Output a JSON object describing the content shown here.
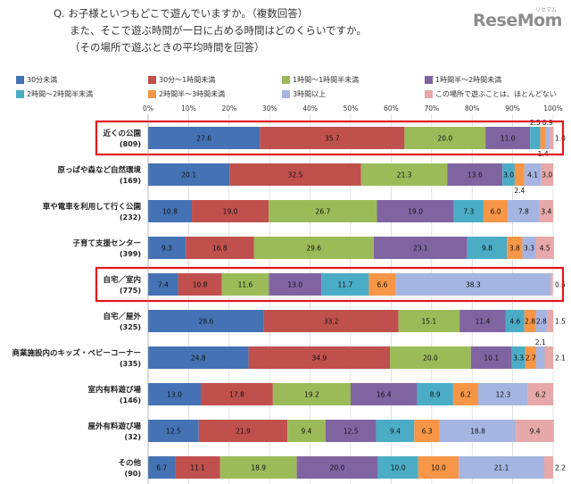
{
  "question": {
    "line1": "Q. お子様といつもどこで遊んでいますか。（複数回答）",
    "line2": "また、そこで遊ぶ時間が一日に占める時間はどのくらいですか。",
    "line3": "（その場所で遊ぶときの平均時間を回答）"
  },
  "logo": {
    "main": "ReseMom",
    "small": "リセマム"
  },
  "chart_data": {
    "type": "bar",
    "orientation": "horizontal",
    "stacked": true,
    "percent_axis": true,
    "xlim": [
      0,
      100
    ],
    "x_ticks": [
      "0%",
      "10%",
      "20%",
      "30%",
      "40%",
      "50%",
      "60%",
      "70%",
      "80%",
      "90%",
      "100%"
    ],
    "grid": true,
    "legend_position": "top",
    "categories": [
      {
        "name": "近くの公園",
        "n": "(809)",
        "highlight": true
      },
      {
        "name": "原っぱや森など自然環境",
        "n": "(169)",
        "highlight": false
      },
      {
        "name": "車や電車を利用して行く公園",
        "n": "(232)",
        "highlight": false
      },
      {
        "name": "子育て支援センター",
        "n": "(399)",
        "highlight": false
      },
      {
        "name": "自宅／室内",
        "n": "(775)",
        "highlight": true
      },
      {
        "name": "自宅／屋外",
        "n": "(325)",
        "highlight": false
      },
      {
        "name": "商業施設内のキッズ・ベビーコーナー",
        "n": "(335)",
        "highlight": false
      },
      {
        "name": "室内有料遊び場",
        "n": "(146)",
        "highlight": false
      },
      {
        "name": "屋外有料遊び場",
        "n": "(32)",
        "highlight": false
      },
      {
        "name": "その他",
        "n": "(90)",
        "highlight": false
      }
    ],
    "series": [
      {
        "name": "30分未満",
        "color": "#4472b4",
        "values": [
          27.6,
          20.1,
          10.8,
          9.3,
          7.4,
          28.6,
          24.8,
          13.0,
          12.5,
          6.7
        ]
      },
      {
        "name": "30分～1時間未満",
        "color": "#c0504d",
        "values": [
          35.7,
          32.5,
          19.0,
          16.8,
          10.8,
          33.2,
          34.9,
          17.8,
          21.9,
          11.1
        ]
      },
      {
        "name": "1時間～1時間半未満",
        "color": "#9bbb59",
        "values": [
          20.0,
          21.3,
          26.7,
          29.6,
          11.6,
          15.1,
          20.0,
          19.2,
          9.4,
          18.9
        ]
      },
      {
        "name": "1時間半～2時間未満",
        "color": "#8064a2",
        "values": [
          11.0,
          13.6,
          19.0,
          23.1,
          13.0,
          11.4,
          10.1,
          16.4,
          12.5,
          20.0
        ]
      },
      {
        "name": "2時間～2時間半未満",
        "color": "#4bacc6",
        "values": [
          2.5,
          3.0,
          7.3,
          9.8,
          11.7,
          4.6,
          3.3,
          8.9,
          9.4,
          10.0
        ]
      },
      {
        "name": "2時間半～3時間未満",
        "color": "#f79646",
        "values": [
          1.4,
          2.4,
          6.0,
          3.8,
          6.6,
          2.8,
          2.7,
          6.2,
          6.3,
          10.0
        ]
      },
      {
        "name": "3時間以上",
        "color": "#a5b4e0",
        "values": [
          0.9,
          4.1,
          7.8,
          3.3,
          38.3,
          2.8,
          2.1,
          12.3,
          18.8,
          21.1
        ]
      },
      {
        "name": "この場所で遊ぶことは、ほとんどない",
        "color": "#e6a8a8",
        "values": [
          1.0,
          3.0,
          3.4,
          4.5,
          0.5,
          1.5,
          2.1,
          6.2,
          9.4,
          2.2
        ]
      }
    ],
    "data_labels": [
      [
        "27.6",
        "35.7",
        "20.0",
        "11.0",
        "2.5",
        "1.4",
        "0.9",
        "1.0"
      ],
      [
        "20.1",
        "32.5",
        "21.3",
        "13.6",
        "3.0",
        "2.4",
        "4.1",
        "3.0"
      ],
      [
        "10.8",
        "19.0",
        "26.7",
        "19.0",
        "7.3",
        "6.0",
        "7.8",
        "3.4"
      ],
      [
        "9.3",
        "16.8",
        "29.6",
        "23.1",
        "9.8",
        "3.8",
        "3.3",
        "4.5"
      ],
      [
        "7.4",
        "10.8",
        "11.6",
        "13.0",
        "11.7",
        "6.6",
        "38.3",
        "0.5"
      ],
      [
        "28.6",
        "33.2",
        "15.1",
        "11.4",
        "4.6",
        "2.8",
        "2.8",
        "1.5"
      ],
      [
        "24.8",
        "34.9",
        "20.0",
        "10.1",
        "3.3",
        "2.7",
        "2.1",
        "2.1"
      ],
      [
        "13.0",
        "17.8",
        "19.2",
        "16.4",
        "8.9",
        "6.2",
        "12.3",
        "6.2"
      ],
      [
        "12.5",
        "21.9",
        "9.4",
        "12.5",
        "9.4",
        "6.3",
        "18.8",
        "9.4"
      ],
      [
        "6.7",
        "11.1",
        "18.9",
        "20.0",
        "10.0",
        "10.0",
        "21.1",
        "2.2"
      ]
    ]
  }
}
